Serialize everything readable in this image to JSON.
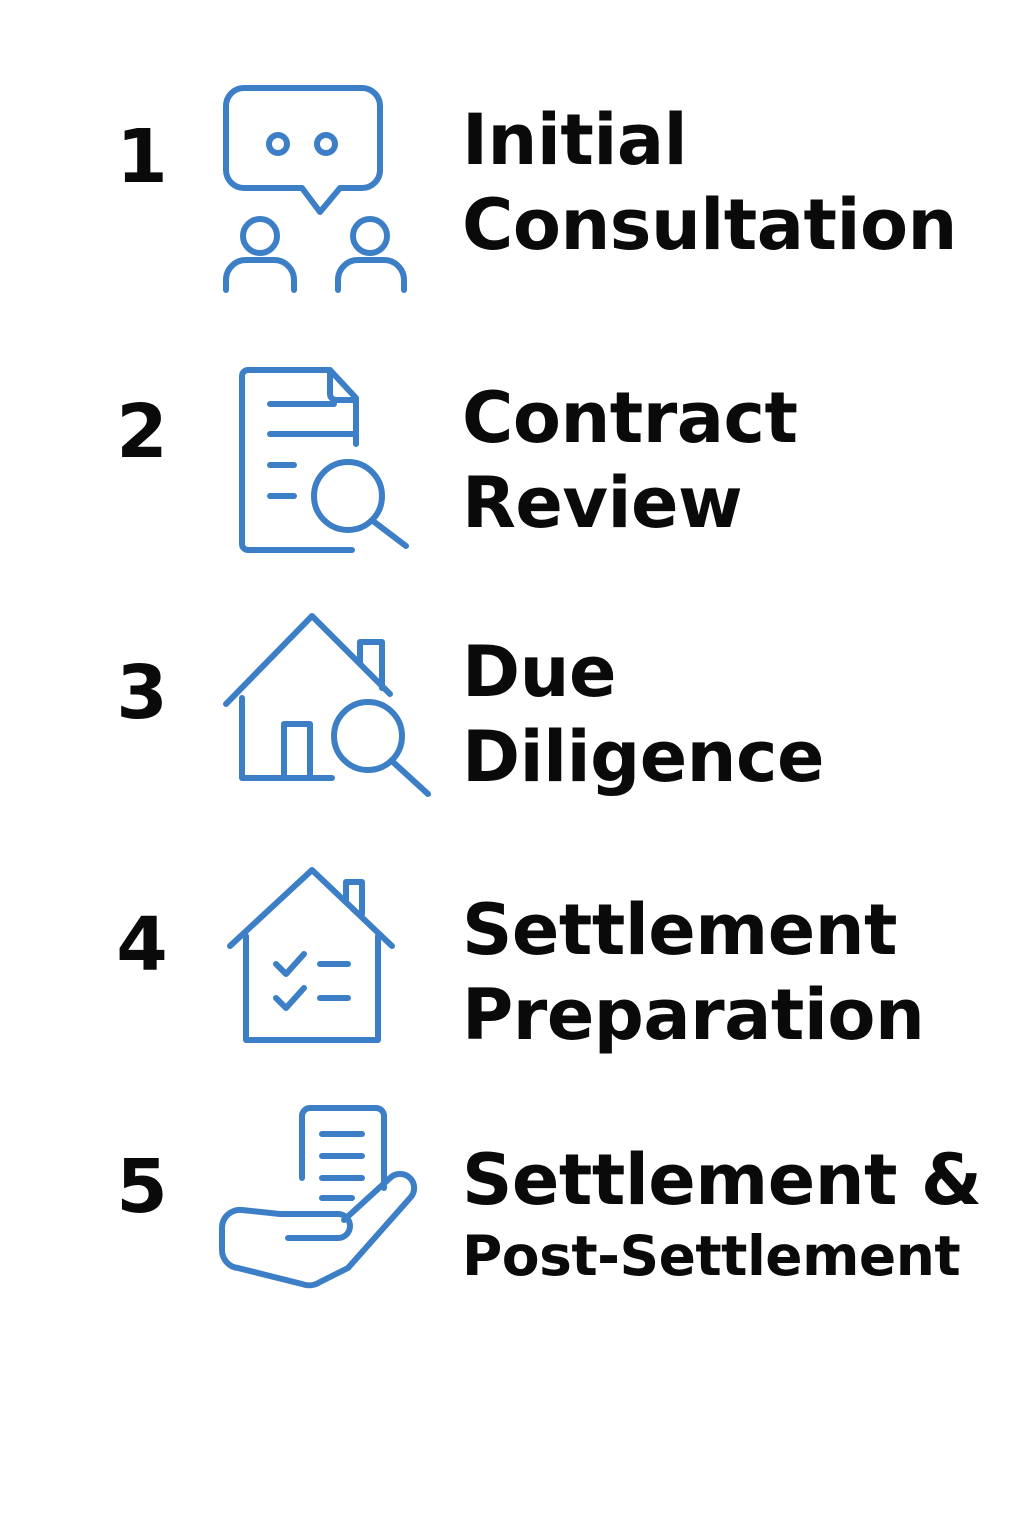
{
  "accent_color": "#3d7fc7",
  "steps": [
    {
      "number": "1",
      "title_line1": "Initial",
      "title_line2": "Consultation",
      "icon": "consultation-chat-people-icon"
    },
    {
      "number": "2",
      "title_line1": "Contract",
      "title_line2": "Review",
      "icon": "document-search-icon"
    },
    {
      "number": "3",
      "title_line1": "Due",
      "title_line2": "Diligence",
      "icon": "house-search-icon"
    },
    {
      "number": "4",
      "title_line1": "Settlement",
      "title_line2": "Preparation",
      "icon": "house-checklist-icon"
    },
    {
      "number": "5",
      "title_line1": "Settlement &",
      "title_line2": "Post-Settlement",
      "icon": "hand-document-icon"
    }
  ]
}
